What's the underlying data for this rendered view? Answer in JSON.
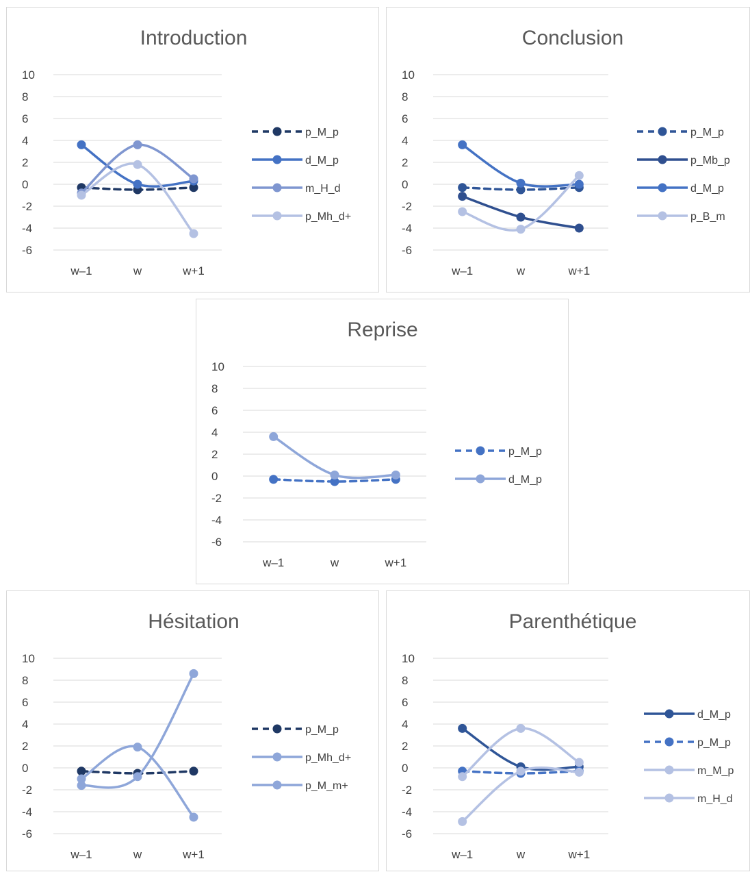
{
  "chart_data": [
    {
      "type": "line",
      "title": "Introduction",
      "categories": [
        "w–1",
        "w",
        "w+1"
      ],
      "ylim": [
        -6,
        10
      ],
      "yticks": [
        10,
        8,
        6,
        4,
        2,
        0,
        -2,
        -4,
        -6
      ],
      "grid": true,
      "legend_position": "right",
      "series": [
        {
          "name": "p_M_p",
          "values": [
            -0.3,
            -0.5,
            -0.3
          ],
          "color": "#1f3864",
          "dashed": true
        },
        {
          "name": "d_M_p",
          "values": [
            3.6,
            0.0,
            0.3
          ],
          "color": "#4472c4",
          "dashed": false
        },
        {
          "name": "m_H_d",
          "values": [
            -0.8,
            3.6,
            0.5
          ],
          "color": "#7f96d0",
          "dashed": false
        },
        {
          "name": "p_Mh_d+",
          "values": [
            -1.0,
            1.8,
            -4.5
          ],
          "color": "#b4c1e3",
          "dashed": false
        }
      ]
    },
    {
      "type": "line",
      "title": "Conclusion",
      "categories": [
        "w–1",
        "w",
        "w+1"
      ],
      "ylim": [
        -6,
        10
      ],
      "yticks": [
        10,
        8,
        6,
        4,
        2,
        0,
        -2,
        -4,
        -6
      ],
      "grid": true,
      "legend_position": "right",
      "series": [
        {
          "name": "p_M_p",
          "values": [
            -0.3,
            -0.5,
            -0.3
          ],
          "color": "#2f5597",
          "dashed": true
        },
        {
          "name": "p_Mb_p",
          "values": [
            -1.1,
            -3.0,
            -4.0
          ],
          "color": "#2f4f8f",
          "dashed": false
        },
        {
          "name": "d_M_p",
          "values": [
            3.6,
            0.1,
            0.0
          ],
          "color": "#4472c4",
          "dashed": false
        },
        {
          "name": "p_B_m",
          "values": [
            -2.5,
            -4.1,
            0.8
          ],
          "color": "#b4c1e3",
          "dashed": false
        }
      ]
    },
    {
      "type": "line",
      "title": "Reprise",
      "categories": [
        "w–1",
        "w",
        "w+1"
      ],
      "ylim": [
        -6,
        10
      ],
      "yticks": [
        10,
        8,
        6,
        4,
        2,
        0,
        -2,
        -4,
        -6
      ],
      "grid": true,
      "legend_position": "right",
      "series": [
        {
          "name": "p_M_p",
          "values": [
            -0.3,
            -0.5,
            -0.3
          ],
          "color": "#4472c4",
          "dashed": true
        },
        {
          "name": "d_M_p",
          "values": [
            3.6,
            0.1,
            0.1
          ],
          "color": "#8ea6d9",
          "dashed": false
        }
      ]
    },
    {
      "type": "line",
      "title": "Hésitation",
      "categories": [
        "w–1",
        "w",
        "w+1"
      ],
      "ylim": [
        -6,
        10
      ],
      "yticks": [
        10,
        8,
        6,
        4,
        2,
        0,
        -2,
        -4,
        -6
      ],
      "grid": true,
      "legend_position": "right",
      "series": [
        {
          "name": "p_M_p",
          "values": [
            -0.3,
            -0.5,
            -0.3
          ],
          "color": "#1f3864",
          "dashed": true
        },
        {
          "name": "p_Mh_d+",
          "values": [
            -1.0,
            1.9,
            -4.5
          ],
          "color": "#8ea6d9",
          "dashed": false
        },
        {
          "name": "p_M_m+",
          "values": [
            -1.6,
            -0.8,
            8.6
          ],
          "color": "#8ea6d9",
          "dashed": false
        }
      ]
    },
    {
      "type": "line",
      "title": "Parenthétique",
      "categories": [
        "w–1",
        "w",
        "w+1"
      ],
      "ylim": [
        -6,
        10
      ],
      "yticks": [
        10,
        8,
        6,
        4,
        2,
        0,
        -2,
        -4,
        -6
      ],
      "grid": true,
      "legend_position": "right",
      "series": [
        {
          "name": "d_M_p",
          "values": [
            3.6,
            0.1,
            0.1
          ],
          "color": "#2f5597",
          "dashed": false
        },
        {
          "name": "p_M_p",
          "values": [
            -0.3,
            -0.5,
            -0.3
          ],
          "color": "#4472c4",
          "dashed": true
        },
        {
          "name": "m_M_p",
          "values": [
            -4.9,
            -0.3,
            -0.4
          ],
          "color": "#b4c1e3",
          "dashed": false
        },
        {
          "name": "m_H_d",
          "values": [
            -0.8,
            3.6,
            0.5
          ],
          "color": "#b4c1e3",
          "dashed": false
        }
      ]
    }
  ]
}
